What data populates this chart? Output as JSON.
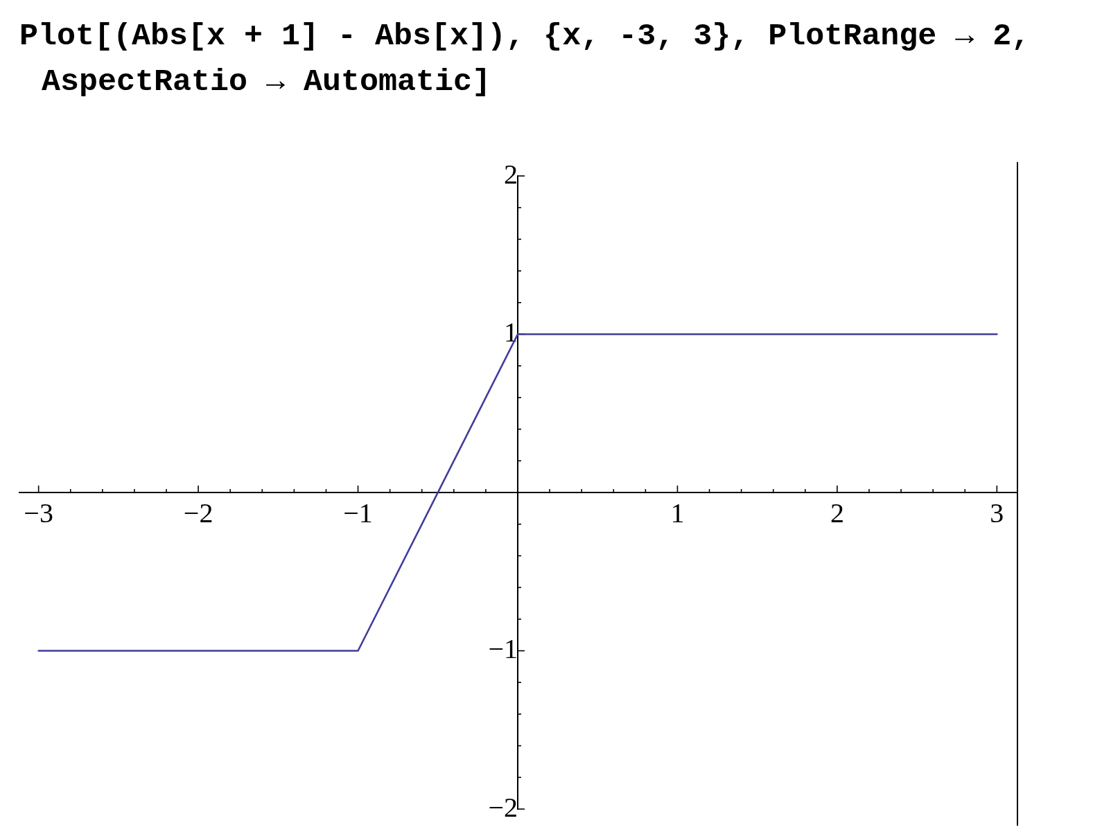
{
  "chart_data": {
    "type": "line",
    "title": "Plot[(Abs[x + 1] - Abs[x]), {x, -3, 3}, PlotRange → 2, AspectRatio → Automatic]",
    "x": [
      -3,
      -1,
      0,
      3
    ],
    "series": [
      {
        "color": "#3f3d99",
        "values": [
          -1,
          -1,
          1,
          1
        ]
      }
    ],
    "xlim": [
      -3.12,
      3.12
    ],
    "ylim": [
      -2,
      2
    ],
    "xticks": [
      {
        "value": -3,
        "label": "−3"
      },
      {
        "value": -2.8,
        "label": null
      },
      {
        "value": -2.6,
        "label": null
      },
      {
        "value": -2.4,
        "label": null
      },
      {
        "value": -2.2,
        "label": null
      },
      {
        "value": -2,
        "label": "−2"
      },
      {
        "value": -1.8,
        "label": null
      },
      {
        "value": -1.6,
        "label": null
      },
      {
        "value": -1.4,
        "label": null
      },
      {
        "value": -1.2,
        "label": null
      },
      {
        "value": -1,
        "label": "−1"
      },
      {
        "value": -0.8,
        "label": null
      },
      {
        "value": -0.6,
        "label": null
      },
      {
        "value": -0.4,
        "label": null
      },
      {
        "value": -0.2,
        "label": null
      },
      {
        "value": 0.2,
        "label": null
      },
      {
        "value": 0.4,
        "label": null
      },
      {
        "value": 0.6,
        "label": null
      },
      {
        "value": 0.8,
        "label": null
      },
      1,
      {
        "value": 1.2,
        "label": null
      },
      {
        "value": 1.4,
        "label": null
      },
      {
        "value": 1.6,
        "label": null
      },
      {
        "value": 1.8,
        "label": null
      },
      2,
      {
        "value": 2.2,
        "label": null
      },
      {
        "value": 2.4,
        "label": null
      },
      {
        "value": 2.6,
        "label": null
      },
      {
        "value": 2.8,
        "label": null
      },
      3
    ],
    "yticks": [
      {
        "value": -2,
        "label": "−2"
      },
      {
        "value": -1.8,
        "label": null
      },
      {
        "value": -1.6,
        "label": null
      },
      {
        "value": -1.4,
        "label": null
      },
      {
        "value": -1.2,
        "label": null
      },
      {
        "value": -1,
        "label": "−1"
      },
      {
        "value": -0.8,
        "label": null
      },
      {
        "value": -0.6,
        "label": null
      },
      {
        "value": -0.4,
        "label": null
      },
      {
        "value": -0.2,
        "label": null
      },
      {
        "value": 0.2,
        "label": null
      },
      {
        "value": 0.4,
        "label": null
      },
      {
        "value": 0.6,
        "label": null
      },
      {
        "value": 0.8,
        "label": null
      },
      1,
      {
        "value": 1.2,
        "label": null
      },
      {
        "value": 1.4,
        "label": null
      },
      {
        "value": 1.6,
        "label": null
      },
      {
        "value": 1.8,
        "label": null
      },
      2
    ],
    "grid": false,
    "legend": false,
    "marker": "none",
    "line_style": "solid"
  }
}
